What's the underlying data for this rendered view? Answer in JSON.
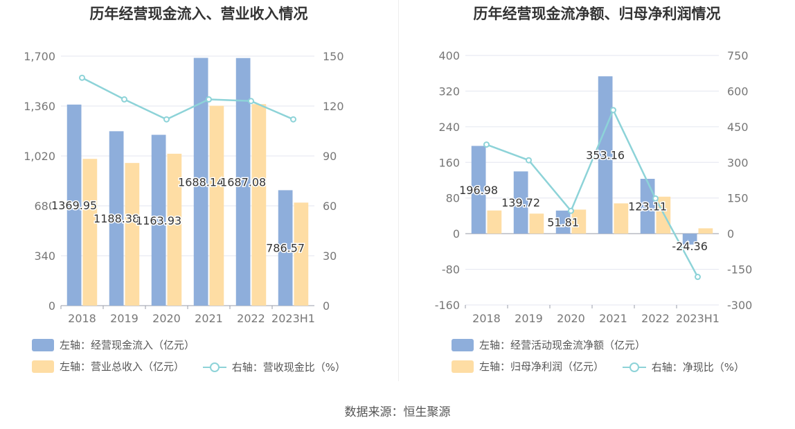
{
  "source": "数据来源：恒生聚源",
  "colors": {
    "primary": "#8eaedb",
    "secondary": "#fedda4",
    "line": "#8dd3d8"
  },
  "chart_data": [
    {
      "type": "bar",
      "title": "历年经营现金流入、营业收入情况",
      "categories": [
        "2018",
        "2019",
        "2020",
        "2021",
        "2022",
        "2023H1"
      ],
      "y_left": {
        "range": [
          0,
          1700
        ],
        "ticks": [
          "0",
          "340",
          "680",
          "1,020",
          "1,360",
          "1,700"
        ]
      },
      "y_right": {
        "range": [
          0,
          150
        ],
        "ticks": [
          "0",
          "30",
          "60",
          "90",
          "120",
          "150"
        ]
      },
      "series": [
        {
          "name": "左轴：经营现金流入（亿元）",
          "type": "bar",
          "axis": "left",
          "values": [
            1369.95,
            1188.38,
            1163.93,
            1688.14,
            1687.08,
            786.57
          ],
          "labels": [
            "1369.95",
            "1188.38",
            "1163.93",
            "1688.14",
            "1687.08",
            "786.57"
          ]
        },
        {
          "name": "左轴：营业总收入（亿元）",
          "type": "bar",
          "axis": "left",
          "values": [
            1000,
            972,
            1035,
            1362,
            1373,
            702
          ]
        },
        {
          "name": "右轴：营收现金比（%）",
          "type": "line",
          "axis": "right",
          "values": [
            137,
            124,
            112,
            124,
            123,
            112
          ]
        }
      ],
      "legend_position": "bottom",
      "grid": true
    },
    {
      "type": "bar",
      "title": "历年经营现金流净额、归母净利润情况",
      "categories": [
        "2018",
        "2019",
        "2020",
        "2021",
        "2022",
        "2023H1"
      ],
      "y_left": {
        "range": [
          -160,
          400
        ],
        "ticks": [
          "-160",
          "-80",
          "0",
          "80",
          "160",
          "240",
          "320",
          "400"
        ]
      },
      "y_right": {
        "range": [
          -300,
          750
        ],
        "ticks": [
          "-300",
          "-150",
          "0",
          "150",
          "300",
          "450",
          "600",
          "750"
        ]
      },
      "series": [
        {
          "name": "左轴：经营活动现金流净额（亿元）",
          "type": "bar",
          "axis": "left",
          "values": [
            196.98,
            139.72,
            51.81,
            353.16,
            123.11,
            -24.36
          ],
          "labels": [
            "196.98",
            "139.72",
            "51.81",
            "353.16",
            "123.11",
            "-24.36"
          ]
        },
        {
          "name": "左轴：归母净利润（亿元）",
          "type": "bar",
          "axis": "left",
          "values": [
            52,
            45,
            54,
            68,
            83,
            12
          ]
        },
        {
          "name": "右轴：净现比（%）",
          "type": "line",
          "axis": "right",
          "values": [
            375,
            309,
            96,
            520,
            148,
            -182
          ]
        }
      ],
      "legend_position": "bottom",
      "grid": true
    }
  ]
}
